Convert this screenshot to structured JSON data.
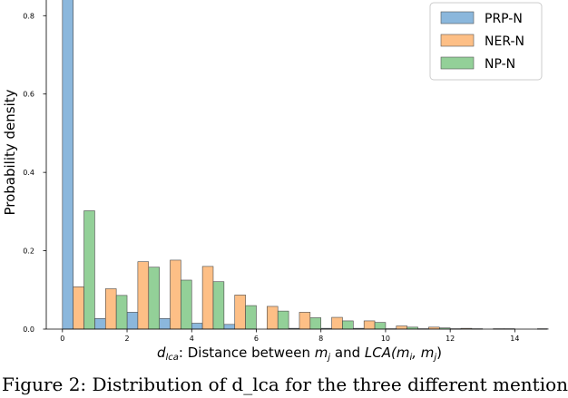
{
  "chart_data": {
    "type": "bar",
    "x_label_parts": [
      "d",
      "lca",
      ": Distance between ",
      "m",
      "j",
      " and ",
      "LCA(m",
      "i",
      ", m",
      "j",
      ")"
    ],
    "ylabel": "Probability density",
    "xlim": [
      -0.5,
      15
    ],
    "ylim": [
      0,
      0.84
    ],
    "x_ticks": [
      0,
      2,
      4,
      6,
      8,
      10,
      12,
      14
    ],
    "y_ticks": [
      0.0,
      0.2,
      0.4,
      0.6,
      0.8
    ],
    "y_tick_labels": [
      "0.0",
      "0.2",
      "0.4",
      "0.6",
      "0.8"
    ],
    "bin_width": 0.333,
    "legend_position": "top-right",
    "series": [
      {
        "name": "PRP-N",
        "color": "#8bb7dc",
        "bins": [
          {
            "x": 0.0,
            "value": 0.845
          },
          {
            "x": 1.0,
            "value": 0.027
          },
          {
            "x": 2.0,
            "value": 0.043
          },
          {
            "x": 3.0,
            "value": 0.027
          },
          {
            "x": 4.0,
            "value": 0.015
          },
          {
            "x": 5.0,
            "value": 0.012
          },
          {
            "x": 6.0,
            "value": 0.0
          },
          {
            "x": 7.0,
            "value": 0.002
          },
          {
            "x": 8.0,
            "value": 0.002
          },
          {
            "x": 9.0,
            "value": 0.002
          },
          {
            "x": 10.0,
            "value": 0.001
          },
          {
            "x": 11.0,
            "value": 0.001
          },
          {
            "x": 12.0,
            "value": 0.001
          },
          {
            "x": 14.7,
            "value": 0.001
          }
        ]
      },
      {
        "name": "NER-N",
        "color": "#fdbf86",
        "bins": [
          {
            "x": 0.333,
            "value": 0.108
          },
          {
            "x": 1.333,
            "value": 0.103
          },
          {
            "x": 2.333,
            "value": 0.172
          },
          {
            "x": 3.333,
            "value": 0.176
          },
          {
            "x": 4.333,
            "value": 0.16
          },
          {
            "x": 5.333,
            "value": 0.087
          },
          {
            "x": 6.333,
            "value": 0.058
          },
          {
            "x": 7.333,
            "value": 0.043
          },
          {
            "x": 8.333,
            "value": 0.03
          },
          {
            "x": 9.333,
            "value": 0.021
          },
          {
            "x": 10.333,
            "value": 0.008
          },
          {
            "x": 11.333,
            "value": 0.005
          },
          {
            "x": 12.333,
            "value": 0.002
          },
          {
            "x": 13.333,
            "value": 0.001
          }
        ]
      },
      {
        "name": "NP-N",
        "color": "#93d098",
        "bins": [
          {
            "x": 0.667,
            "value": 0.302
          },
          {
            "x": 1.667,
            "value": 0.086
          },
          {
            "x": 2.667,
            "value": 0.158
          },
          {
            "x": 3.667,
            "value": 0.125
          },
          {
            "x": 4.667,
            "value": 0.121
          },
          {
            "x": 5.667,
            "value": 0.06
          },
          {
            "x": 6.667,
            "value": 0.046
          },
          {
            "x": 7.667,
            "value": 0.029
          },
          {
            "x": 8.667,
            "value": 0.021
          },
          {
            "x": 9.667,
            "value": 0.017
          },
          {
            "x": 10.667,
            "value": 0.005
          },
          {
            "x": 11.667,
            "value": 0.003
          },
          {
            "x": 12.667,
            "value": 0.001
          },
          {
            "x": 13.667,
            "value": 0.001
          }
        ]
      }
    ]
  },
  "caption_text": "Figure 2: Distribution of d_lca for the three different mention"
}
